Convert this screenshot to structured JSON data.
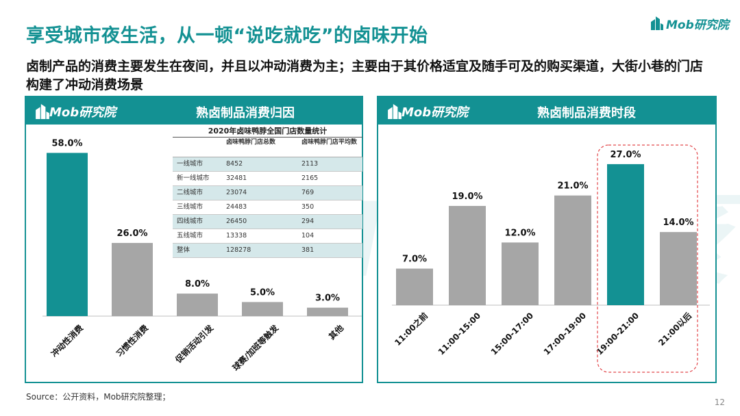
{
  "title": "享受城市夜生活，从一顿“说吃就吃”的卤味开始",
  "subtitle": "卤制产品的消费主要发生在夜间，并且以冲动消费为主；主要由于其价格适宜及随手可及的购买渠道，大街小巷的门店构建了冲动消费场景",
  "brand": "Mob研究院",
  "watermark": "MobTech 袤博",
  "left_panel": {
    "header_title": "熟卤制品消费归因"
  },
  "right_panel": {
    "header_title": "熟卤制品消费时段"
  },
  "store_table": {
    "title": "2020年卤味鸭脖全国门店数量统计",
    "headers": [
      "",
      "卤味鸭脖门店总数",
      "卤味鸭脖门店平均数"
    ],
    "rows": [
      {
        "city": "一线城市",
        "total": "8452",
        "avg": "2113"
      },
      {
        "city": "新一线城市",
        "total": "32481",
        "avg": "2165"
      },
      {
        "city": "二线城市",
        "total": "23074",
        "avg": "769"
      },
      {
        "city": "三线城市",
        "total": "24483",
        "avg": "350"
      },
      {
        "city": "四线城市",
        "total": "26450",
        "avg": "294"
      },
      {
        "city": "五线城市",
        "total": "13338",
        "avg": "104"
      },
      {
        "city": "整体",
        "total": "128278",
        "avg": "381"
      }
    ]
  },
  "chart_data": [
    {
      "type": "bar",
      "title": "熟卤制品消费归因",
      "categories": [
        "冲动性消费",
        "习惯性消费",
        "促销活动引发",
        "球赛/加班等触发",
        "其他"
      ],
      "values": [
        58.0,
        26.0,
        8.0,
        5.0,
        3.0
      ],
      "labels": [
        "58.0%",
        "26.0%",
        "8.0%",
        "5.0%",
        "3.0%"
      ],
      "highlight_index": 0,
      "colors": {
        "highlight": "#139193",
        "default": "#a6a6a6"
      },
      "ylim": [
        0,
        62
      ]
    },
    {
      "type": "bar",
      "title": "熟卤制品消费时段",
      "categories": [
        "11:00之前",
        "11:00-15:00",
        "15:00-17:00",
        "17:00-19:00",
        "19:00-21:00",
        "21:00以后"
      ],
      "values": [
        7.0,
        19.0,
        12.0,
        21.0,
        27.0,
        14.0
      ],
      "labels": [
        "7.0%",
        "19.0%",
        "12.0%",
        "21.0%",
        "27.0%",
        "14.0%"
      ],
      "highlight_index": 4,
      "colors": {
        "highlight": "#139193",
        "default": "#a6a6a6"
      },
      "ylim": [
        0,
        30
      ]
    }
  ],
  "source": "Source：公开资料，Mob研究院整理；",
  "page_number": "12"
}
